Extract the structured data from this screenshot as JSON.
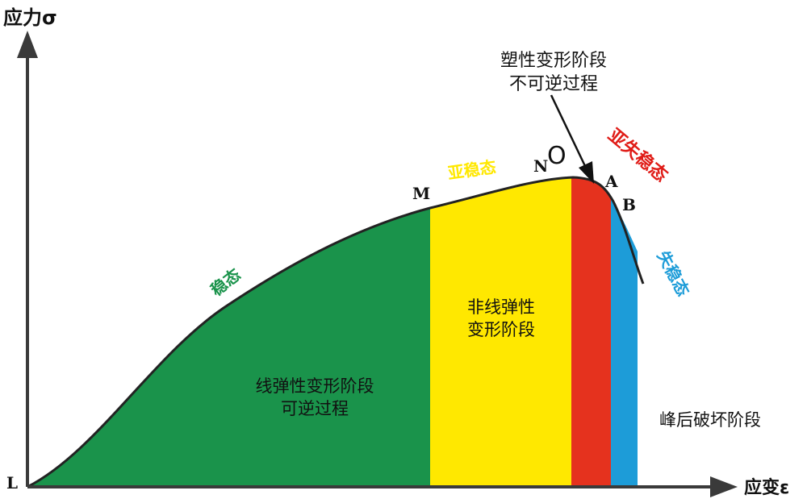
{
  "axes": {
    "y_label": "应力σ",
    "x_label": "应变ε",
    "origin_label": "L"
  },
  "points": {
    "M": "M",
    "N": "N",
    "O": "O",
    "A": "A",
    "B": "B"
  },
  "states": {
    "stable": "稳态",
    "sub_stable": "亚稳态",
    "sub_unstable": "亚失稳态",
    "unstable": "失稳态"
  },
  "stages": {
    "linear_line1": "线弹性变形阶段",
    "linear_line2": "可逆过程",
    "nonlinear_line1": "非线弹性",
    "nonlinear_line2": "变形阶段",
    "plastic_line1": "塑性变形阶段",
    "plastic_line2": "不可逆过程",
    "post_peak": "峰后破坏阶段"
  },
  "colors": {
    "linear_stage": "#1a934b",
    "nonlinear_stage": "#ffe800",
    "plastic_stage": "#e5321e",
    "post_peak_stage": "#1d9cd8",
    "stable_text": "#1a934b",
    "sub_stable_text": "#ffe800",
    "sub_unstable_text": "#e01c17",
    "unstable_text": "#1d9cd8",
    "axis": "#3a3a3a"
  }
}
